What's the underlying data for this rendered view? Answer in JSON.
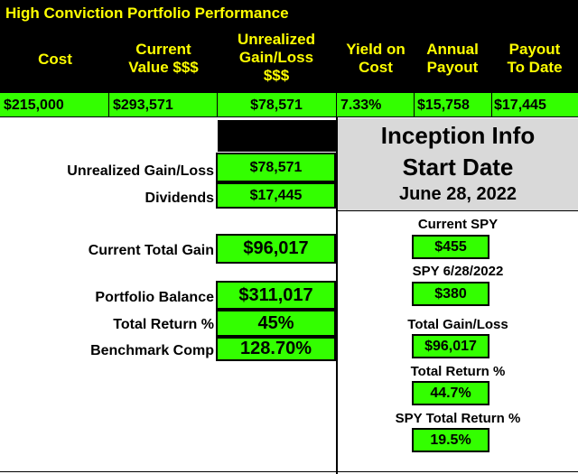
{
  "title": "High Conviction Portfolio Performance",
  "headers": {
    "cost": "Cost",
    "current_value": [
      "Current",
      "Value $$$"
    ],
    "unrealized": [
      "Unrealized",
      "Gain/Loss",
      "$$$"
    ],
    "yield": [
      "Yield on",
      "Cost"
    ],
    "annual": [
      "Annual",
      "Payout"
    ],
    "payout": [
      "Payout",
      "To Date"
    ]
  },
  "values": {
    "cost": "$215,000",
    "current_value": "$293,571",
    "unrealized": "$78,571",
    "yield": "7.33%",
    "annual": "$15,758",
    "payout": "$17,445"
  },
  "left": {
    "unrealized_label": "Unrealized Gain/Loss",
    "unrealized_value": "$78,571",
    "dividends_label": "Dividends",
    "dividends_value": "$17,445",
    "total_gain_label": "Current Total Gain",
    "total_gain_value": "$96,017",
    "balance_label": "Portfolio Balance",
    "balance_value": "$311,017",
    "return_label": "Total Return %",
    "return_value": "45%",
    "benchmark_label": "Benchmark Comp",
    "benchmark_value": "128.70%"
  },
  "inception": {
    "line1": "Inception Info",
    "line2": "Start Date",
    "date": "June 28, 2022"
  },
  "right": {
    "current_spy_label": "Current SPY",
    "current_spy_value": "$455",
    "spy_start_label": "SPY 6/28/2022",
    "spy_start_value": "$380",
    "total_gl_label": "Total Gain/Loss",
    "total_gl_value": "$96,017",
    "total_return_label": "Total Return %",
    "total_return_value": "44.7%",
    "spy_return_label": "SPY Total Return %",
    "spy_return_value": "19.5%"
  },
  "colors": {
    "header_bg": "#000000",
    "header_text": "#ffff00",
    "value_bg": "#33ff00",
    "inception_bg": "#d9d9d9"
  }
}
